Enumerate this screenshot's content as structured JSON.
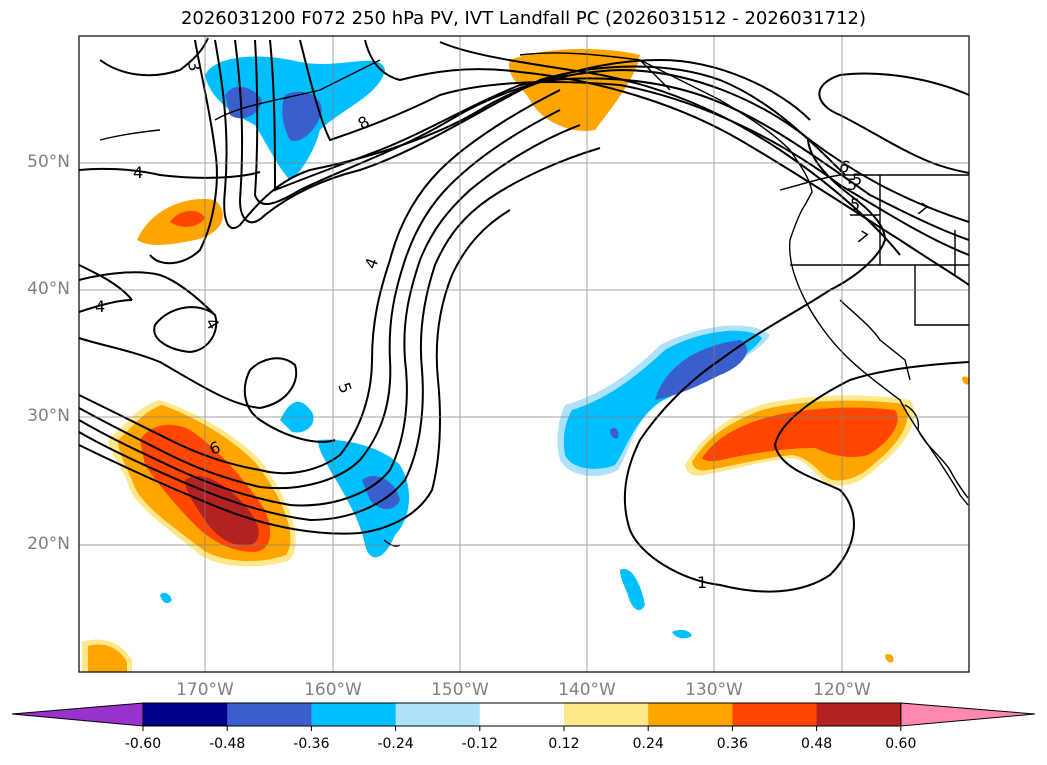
{
  "title": "2026031200 F072 250 hPa PV, IVT Landfall PC (2026031512 - 2026031712)",
  "map": {
    "lat_ticks": [
      "50°N",
      "40°N",
      "30°N",
      "20°N"
    ],
    "lon_ticks": [
      "170°W",
      "160°W",
      "150°W",
      "140°W",
      "130°W",
      "120°W"
    ],
    "contour_labels": [
      "3",
      "8",
      "7",
      "4",
      "4",
      "4",
      "4",
      "5",
      "6",
      "1",
      "6",
      "5",
      "5",
      "7",
      "5"
    ],
    "pv_contour_color": "#000000"
  },
  "colorbar": {
    "levels": [
      "-0.60",
      "-0.48",
      "-0.36",
      "-0.24",
      "-0.12",
      "0.12",
      "0.24",
      "0.36",
      "0.48",
      "0.60"
    ],
    "colors": [
      "#9932cc",
      "#00008b",
      "#3a5fcd",
      "#00bfff",
      "#aee2fa",
      "#ffffff",
      "#ffe88a",
      "#ffa500",
      "#ff4500",
      "#b22222",
      "#ff88b0"
    ]
  }
}
